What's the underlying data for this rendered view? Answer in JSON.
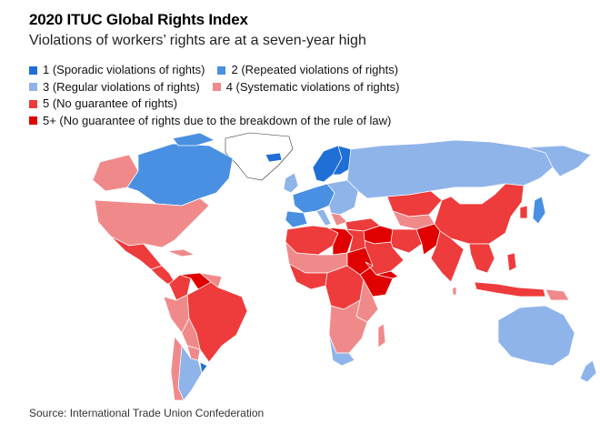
{
  "title": "2020 ITUC Global Rights Index",
  "subtitle": "Violations of workers’ rights are at a seven-year high",
  "legend": [
    {
      "label": "1 (Sporadic violations of rights)",
      "color": "#1f6fd6"
    },
    {
      "label": "2 (Repeated violations of rights)",
      "color": "#4a90e2"
    },
    {
      "label": "3 (Regular violations of rights)",
      "color": "#8fb4ea"
    },
    {
      "label": "4 (Systematic violations of rights)",
      "color": "#f08a8a"
    },
    {
      "label": "5 (No guarantee of rights)",
      "color": "#ee3b3b"
    },
    {
      "label": "5+ (No guarantee of rights due to the breakdown of the rule of law)",
      "color": "#e00000"
    }
  ],
  "no_data_color": "#ffffff",
  "source": "Source: International Trade Union Confederation"
}
